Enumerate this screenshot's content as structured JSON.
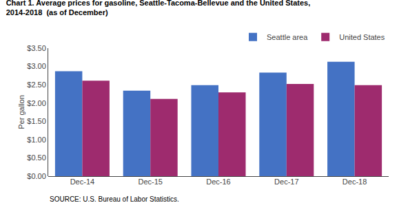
{
  "chart_data": {
    "type": "bar",
    "title": "Chart 1. Average prices for gasoline, Seattle-Tacoma-Bellevue and the United States,",
    "subtitle": "2014-2018  (as of December)",
    "ylabel": "Per gallon",
    "annotations": [
      "SOURCE: U.S. Bureau of Labor Statistics."
    ],
    "categories": [
      "Dec-14",
      "Dec-15",
      "Dec-16",
      "Dec-17",
      "Dec-18"
    ],
    "series": [
      {
        "name": "Seattle area",
        "color": "#4472C4",
        "values": [
          2.87,
          2.34,
          2.49,
          2.83,
          3.13
        ]
      },
      {
        "name": "United States",
        "color": "#9E2B6E",
        "values": [
          2.61,
          2.11,
          2.29,
          2.52,
          2.49
        ]
      }
    ],
    "ylim": [
      0,
      3.5
    ],
    "yticks": [
      {
        "value": 0,
        "label": "$0.00"
      },
      {
        "value": 0.5,
        "label": "$0.50"
      },
      {
        "value": 1,
        "label": "$1.00"
      },
      {
        "value": 1.5,
        "label": "$1.50"
      },
      {
        "value": 2,
        "label": "$2.00"
      },
      {
        "value": 2.5,
        "label": "$2.50"
      },
      {
        "value": 3,
        "label": "$3.00"
      },
      {
        "value": 3.5,
        "label": "$3.50"
      }
    ],
    "grid": false,
    "legend": "upper right"
  }
}
